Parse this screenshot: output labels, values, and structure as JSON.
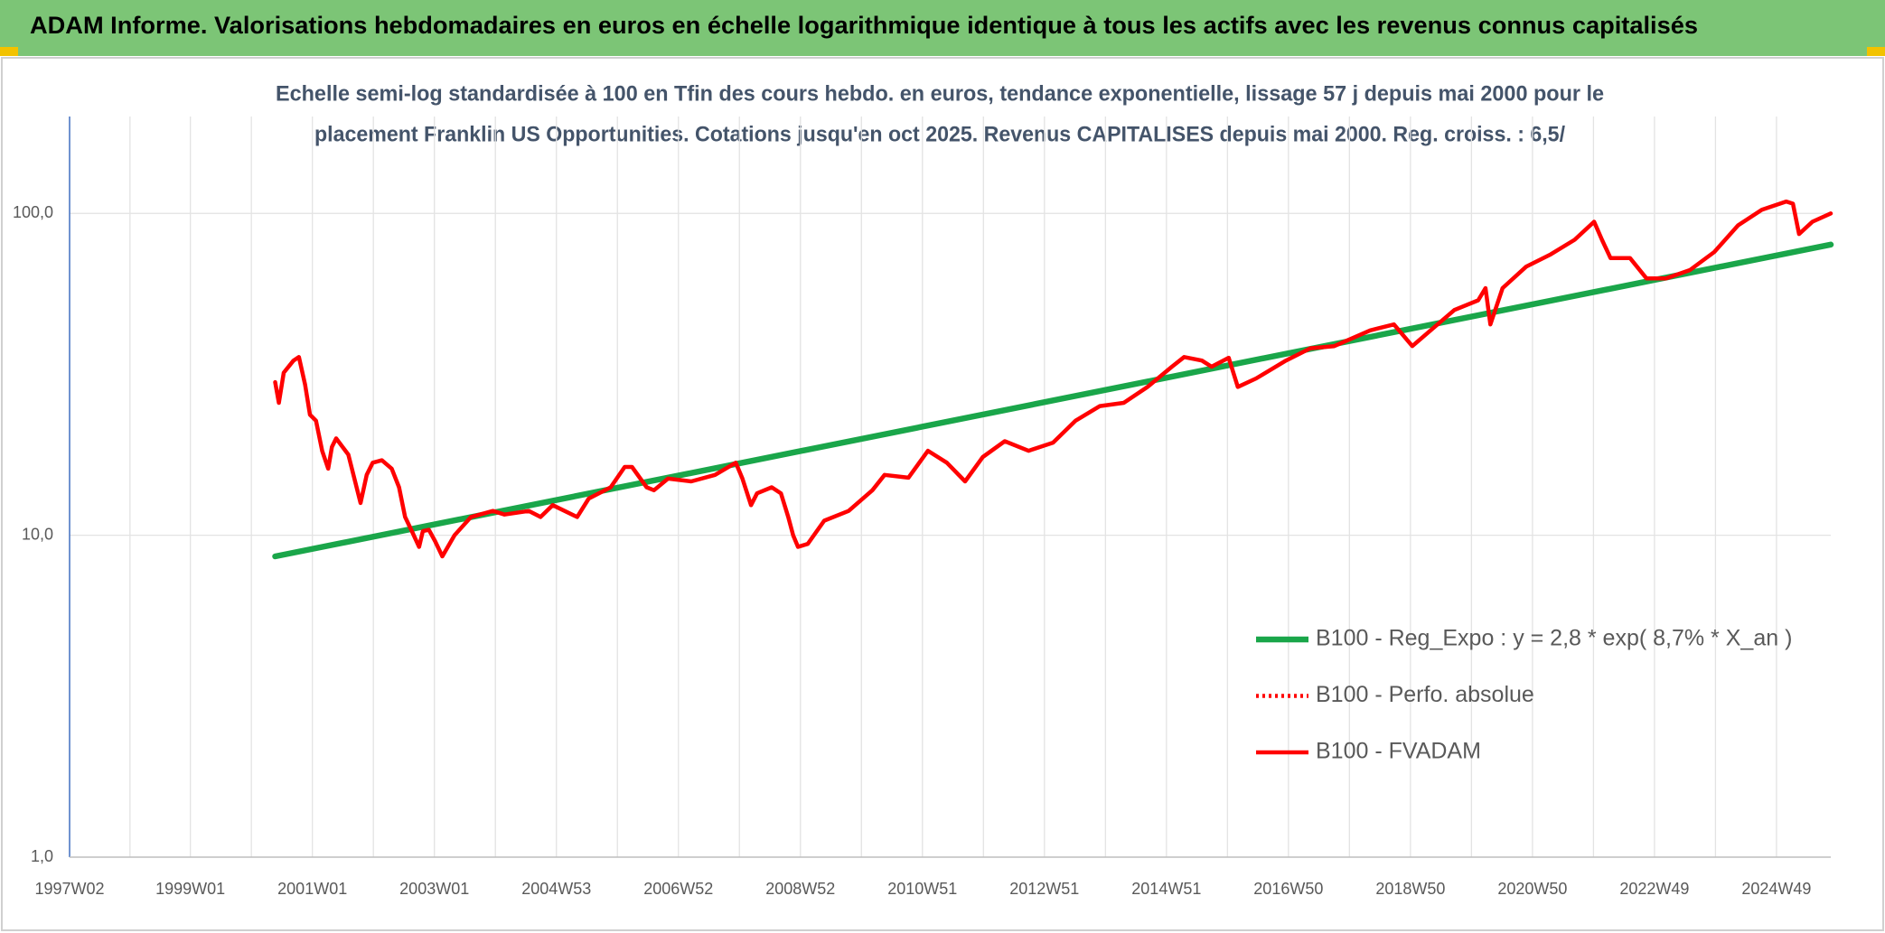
{
  "header": {
    "title": "ADAM Informe. Valorisations hebdomadaires en euros en échelle logarithmique identique à tous les actifs avec les revenus connus capitalisés"
  },
  "chart_data": {
    "type": "line",
    "title": [
      "Echelle semi-log standardisée à 100 en Tfin des cours hebdo. en euros, tendance exponentielle, lissage 57 j depuis mai 2000 pour le",
      "placement Franklin US Opportunities. Cotations jusqu'en oct 2025. Revenus CAPITALISES depuis mai 2000. Reg. croiss. : 6,5/"
    ],
    "log_y": true,
    "grid": true,
    "legend": "right",
    "xlim": [
      1997.02,
      2025.89
    ],
    "xticks": [
      {
        "value": 1997.02,
        "label": "1997W02"
      },
      {
        "value": 1999.0,
        "label": "1999W01"
      },
      {
        "value": 2001.0,
        "label": "2001W01"
      },
      {
        "value": 2003.0,
        "label": "2003W01"
      },
      {
        "value": 2005.0,
        "label": "2004W53"
      },
      {
        "value": 2007.0,
        "label": "2006W52"
      },
      {
        "value": 2009.0,
        "label": "2008W52"
      },
      {
        "value": 2011.0,
        "label": "2010W51"
      },
      {
        "value": 2013.0,
        "label": "2012W51"
      },
      {
        "value": 2015.0,
        "label": "2014W51"
      },
      {
        "value": 2017.0,
        "label": "2016W50"
      },
      {
        "value": 2019.0,
        "label": "2018W50"
      },
      {
        "value": 2021.0,
        "label": "2020W50"
      },
      {
        "value": 2023.0,
        "label": "2022W49"
      },
      {
        "value": 2025.0,
        "label": "2024W49"
      }
    ],
    "ylim": [
      1,
      200
    ],
    "yticks": [
      {
        "value": 1,
        "label": "1,0"
      },
      {
        "value": 10,
        "label": "10,0"
      },
      {
        "value": 100,
        "label": "100,0"
      }
    ],
    "series": [
      {
        "name": "B100 - Reg_Expo : y = 2,8 * exp( 8,7% *  X_an )",
        "color": "#1aa64a",
        "style": "solid",
        "x": [
          2000.39,
          2025.89
        ],
        "values": [
          8.6,
          80.0
        ]
      },
      {
        "name": "B100 - Perfo. absolue",
        "color": "#ff0000",
        "style": "dotted"
      },
      {
        "name": "B100 - FVADAM",
        "color": "#ff0000",
        "style": "solid",
        "x": [
          2000.39,
          2000.45,
          2000.53,
          2000.69,
          2000.78,
          2000.88,
          2000.96,
          2001.06,
          2001.16,
          2001.26,
          2001.32,
          2001.39,
          2001.59,
          2001.79,
          2001.89,
          2001.99,
          2002.14,
          2002.3,
          2002.42,
          2002.52,
          2002.62,
          2002.75,
          2002.81,
          2002.91,
          2003.01,
          2003.13,
          2003.33,
          2003.6,
          2003.96,
          2004.15,
          2004.55,
          2004.74,
          2004.94,
          2005.34,
          2005.53,
          2005.89,
          2006.12,
          2006.24,
          2006.48,
          2006.6,
          2006.83,
          2007.21,
          2007.6,
          2007.94,
          2008.05,
          2008.19,
          2008.29,
          2008.53,
          2008.68,
          2008.8,
          2008.88,
          2008.96,
          2009.12,
          2009.39,
          2009.79,
          2010.18,
          2010.38,
          2010.77,
          2011.09,
          2011.4,
          2011.7,
          2011.99,
          2012.35,
          2012.74,
          2013.14,
          2013.51,
          2013.91,
          2014.3,
          2014.69,
          2015.09,
          2015.29,
          2015.58,
          2015.74,
          2016.02,
          2016.17,
          2016.47,
          2016.96,
          2017.36,
          2017.75,
          2018.34,
          2018.73,
          2019.03,
          2019.33,
          2019.72,
          2020.11,
          2020.23,
          2020.31,
          2020.51,
          2020.9,
          2021.3,
          2021.69,
          2022.01,
          2022.14,
          2022.28,
          2022.6,
          2022.87,
          2023.19,
          2023.58,
          2023.98,
          2024.37,
          2024.76,
          2025.16,
          2025.27,
          2025.37,
          2025.59,
          2025.89
        ],
        "values": [
          29.9,
          25.8,
          32.0,
          34.9,
          35.8,
          29.4,
          23.7,
          22.7,
          18.3,
          16.1,
          18.8,
          20.0,
          17.8,
          12.6,
          15.4,
          16.8,
          17.1,
          16.1,
          14.1,
          11.4,
          10.4,
          9.2,
          10.3,
          10.4,
          9.6,
          8.6,
          10.0,
          11.4,
          11.9,
          11.6,
          11.9,
          11.4,
          12.4,
          11.4,
          13.0,
          14.1,
          16.3,
          16.3,
          14.1,
          13.8,
          15.0,
          14.7,
          15.4,
          16.8,
          15.0,
          12.4,
          13.5,
          14.1,
          13.5,
          11.4,
          10.0,
          9.2,
          9.4,
          11.1,
          11.9,
          13.8,
          15.4,
          15.1,
          18.3,
          16.8,
          14.7,
          17.5,
          19.6,
          18.3,
          19.4,
          22.7,
          25.2,
          25.8,
          28.9,
          33.4,
          35.8,
          34.9,
          33.4,
          35.6,
          28.9,
          30.7,
          34.9,
          38.1,
          38.7,
          43.3,
          45.2,
          38.7,
          43.3,
          50.1,
          53.7,
          58.6,
          45.2,
          58.6,
          68.4,
          74.6,
          82.8,
          94.2,
          82.8,
          72.6,
          72.6,
          62.8,
          62.8,
          66.7,
          75.9,
          91.8,
          102.6,
          108.9,
          107.2,
          86.3,
          94.2,
          100.0
        ]
      }
    ]
  }
}
